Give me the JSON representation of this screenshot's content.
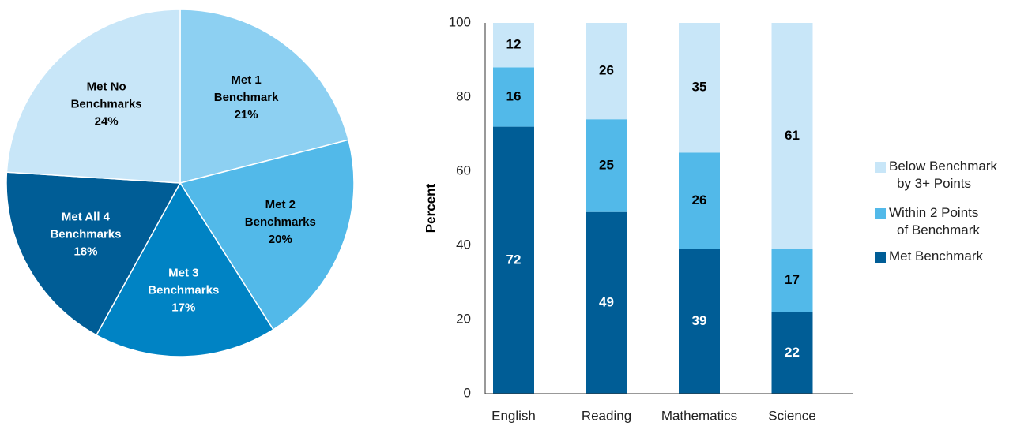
{
  "chart_data": [
    {
      "type": "pie",
      "slices": [
        {
          "label_lines": [
            "Met 1",
            "Benchmark"
          ],
          "percent_label": "21%",
          "value": 21,
          "color": "#8dd0f2",
          "text_color": "#000000"
        },
        {
          "label_lines": [
            "Met 2",
            "Benchmarks"
          ],
          "percent_label": "20%",
          "value": 20,
          "color": "#52b9e9",
          "text_color": "#000000"
        },
        {
          "label_lines": [
            "Met 3",
            "Benchmarks"
          ],
          "percent_label": "17%",
          "value": 17,
          "color": "#0083c4",
          "text_color": "#ffffff"
        },
        {
          "label_lines": [
            "Met All 4",
            "Benchmarks"
          ],
          "percent_label": "18%",
          "value": 18,
          "color": "#005d96",
          "text_color": "#ffffff"
        },
        {
          "label_lines": [
            "Met No",
            "Benchmarks"
          ],
          "percent_label": "24%",
          "value": 24,
          "color": "#c8e6f8",
          "text_color": "#000000"
        }
      ]
    },
    {
      "type": "bar",
      "stacked": true,
      "categories": [
        "English",
        "Reading",
        "Mathematics",
        "Science"
      ],
      "ylabel": "Percent",
      "ylim": [
        0,
        100
      ],
      "yticks": [
        0,
        20,
        40,
        60,
        80,
        100
      ],
      "legend_position": "right",
      "series": [
        {
          "name_lines": [
            "Met Benchmark"
          ],
          "values": [
            72,
            49,
            39,
            22
          ],
          "color": "#005d96",
          "text_color": "#ffffff"
        },
        {
          "name_lines": [
            "Within 2 Points",
            "of Benchmark"
          ],
          "values": [
            16,
            25,
            26,
            17
          ],
          "color": "#52b9e9",
          "text_color": "#000000"
        },
        {
          "name_lines": [
            "Below Benchmark",
            "by 3+ Points"
          ],
          "values": [
            12,
            26,
            35,
            61
          ],
          "color": "#c8e6f8",
          "text_color": "#000000"
        }
      ]
    }
  ]
}
